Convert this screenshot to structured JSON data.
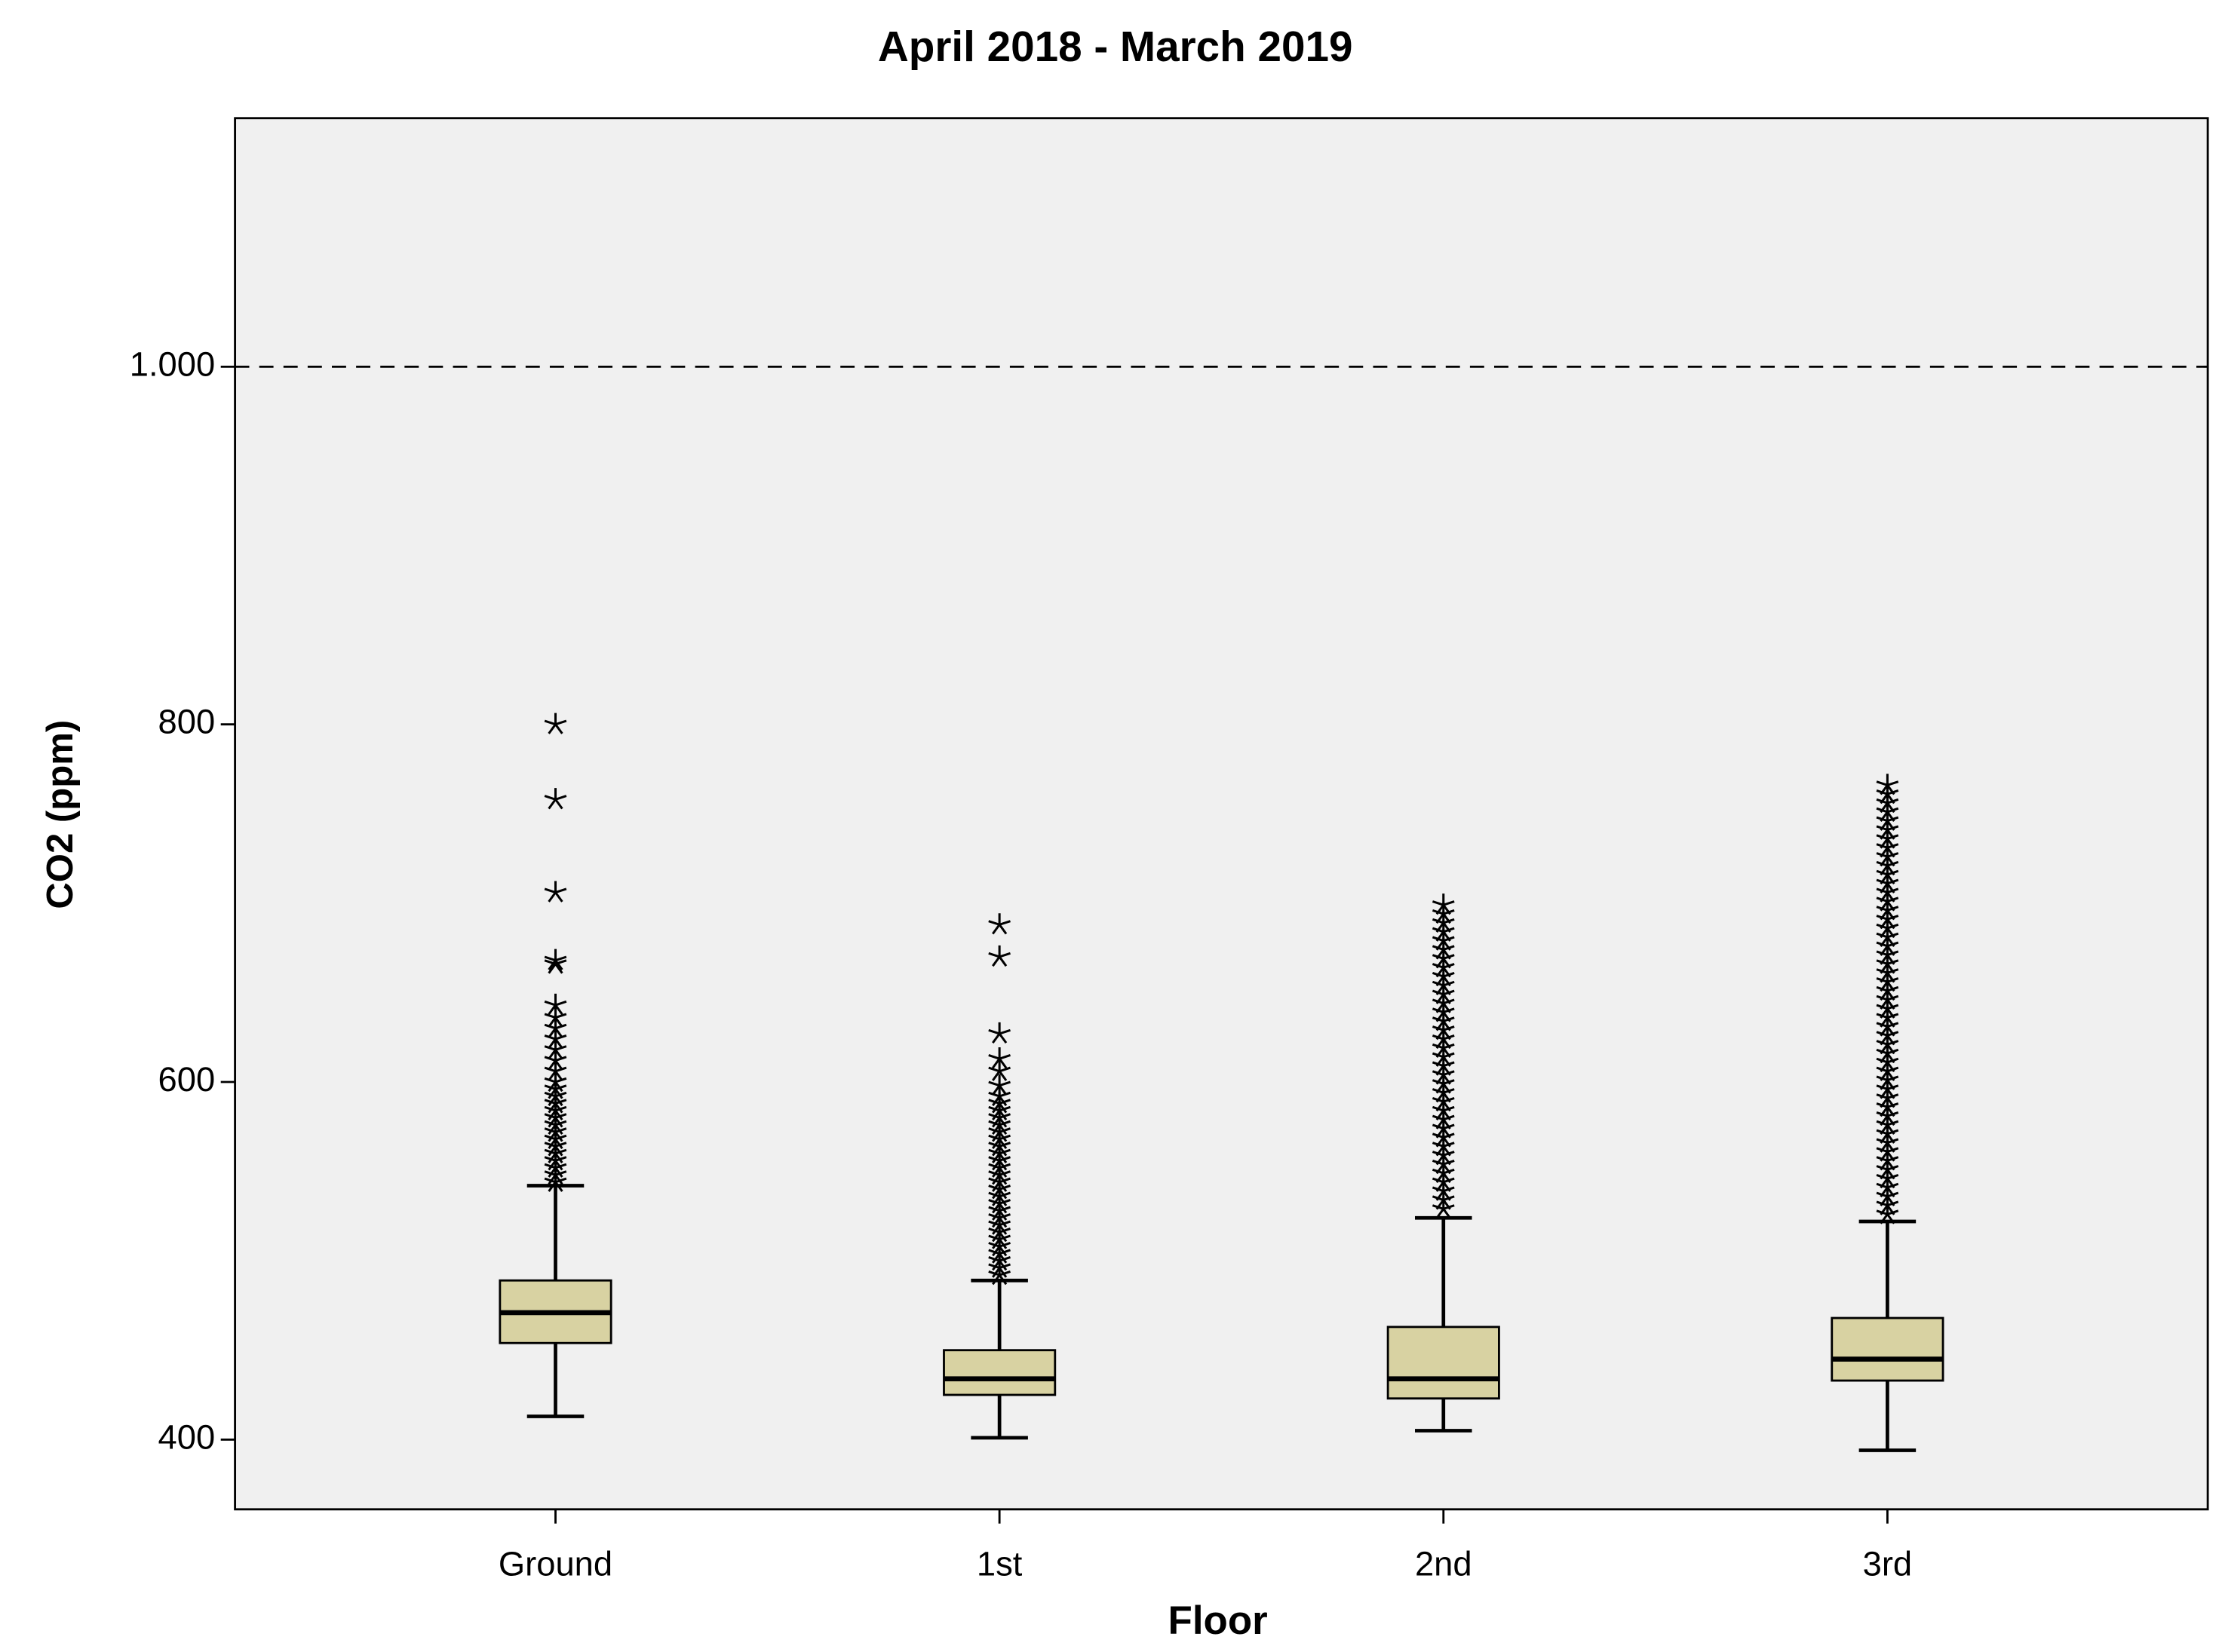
{
  "chart_data": {
    "type": "box",
    "title": "April 2018 - March 2019",
    "x_label": "Floor",
    "y_label": "CO2 (ppm)",
    "categories": [
      "Ground",
      "1st",
      "2nd",
      "3rd"
    ],
    "color": "#d8d2a2",
    "background": "#f0f0f0",
    "reference_line": 1000,
    "ylim": [
      361,
      1139
    ],
    "yticks": [
      400,
      600,
      800,
      {
        "value": 1000,
        "label": "1.000"
      }
    ],
    "boxes": [
      {
        "whisker_low": 413,
        "q1": 454,
        "median": 471,
        "q3": 489,
        "whisker_high": 542,
        "outliers": [
          800,
          758,
          706,
          668,
          666,
          643,
          636,
          630,
          624,
          618,
          612,
          606,
          600,
          596,
          592,
          588,
          584,
          580,
          576,
          572,
          568,
          564,
          560,
          556,
          552,
          548,
          544
        ]
      },
      {
        "whisker_low": 401,
        "q1": 425,
        "median": 434,
        "q3": 450,
        "whisker_high": 489,
        "outliers": [
          688,
          670,
          627,
          613,
          606,
          598,
          592,
          588,
          584,
          580,
          576,
          572,
          568,
          564,
          560,
          556,
          552,
          548,
          544,
          540,
          536,
          532,
          528,
          524,
          520,
          516,
          512,
          508,
          504,
          500,
          496,
          492
        ]
      },
      {
        "whisker_low": 405,
        "q1": 423,
        "median": 434,
        "q3": 463,
        "whisker_high": 524,
        "outliers": [
          699,
          694,
          689,
          684,
          679,
          674,
          669,
          664,
          659,
          654,
          649,
          644,
          639,
          634,
          629,
          624,
          619,
          614,
          609,
          604,
          599,
          594,
          589,
          584,
          579,
          574,
          569,
          564,
          559,
          554,
          549,
          544,
          539,
          534,
          529
        ]
      },
      {
        "whisker_low": 394,
        "q1": 433,
        "median": 445,
        "q3": 468,
        "whisker_high": 522,
        "outliers": [
          766,
          761,
          756,
          751,
          746,
          741,
          736,
          731,
          726,
          721,
          716,
          711,
          706,
          701,
          696,
          691,
          686,
          681,
          676,
          671,
          666,
          661,
          656,
          651,
          646,
          641,
          636,
          631,
          626,
          621,
          616,
          611,
          606,
          601,
          596,
          591,
          586,
          581,
          576,
          571,
          566,
          561,
          556,
          551,
          546,
          541,
          536,
          531,
          526
        ]
      }
    ]
  }
}
